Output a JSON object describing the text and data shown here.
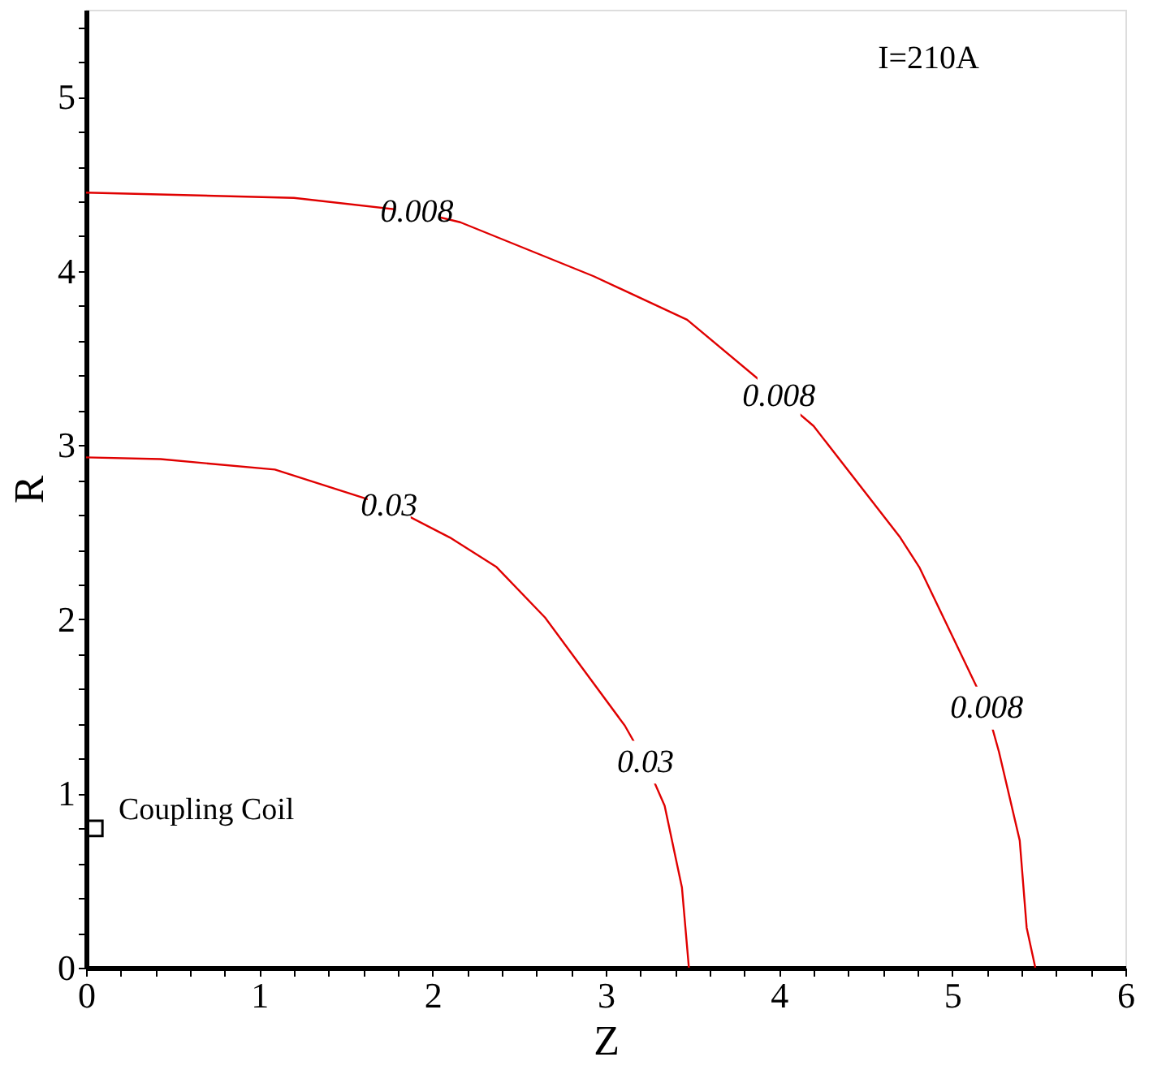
{
  "chart_data": {
    "type": "line",
    "xlabel": "Z",
    "ylabel": "R",
    "xlim": [
      0,
      6
    ],
    "ylim": [
      0,
      5.5
    ],
    "xticks": [
      0,
      {
        "value": 0.2,
        "label": null
      },
      {
        "value": 0.4,
        "label": null
      },
      {
        "value": 0.6,
        "label": null
      },
      {
        "value": 0.8,
        "label": null
      },
      1,
      {
        "value": 1.2,
        "label": null
      },
      {
        "value": 1.4,
        "label": null
      },
      {
        "value": 1.6,
        "label": null
      },
      {
        "value": 1.8,
        "label": null
      },
      2,
      {
        "value": 2.2,
        "label": null
      },
      {
        "value": 2.4,
        "label": null
      },
      {
        "value": 2.6,
        "label": null
      },
      {
        "value": 2.8,
        "label": null
      },
      3,
      {
        "value": 3.2,
        "label": null
      },
      {
        "value": 3.4,
        "label": null
      },
      {
        "value": 3.6,
        "label": null
      },
      {
        "value": 3.8,
        "label": null
      },
      4,
      {
        "value": 4.2,
        "label": null
      },
      {
        "value": 4.4,
        "label": null
      },
      {
        "value": 4.6,
        "label": null
      },
      {
        "value": 4.8,
        "label": null
      },
      5,
      {
        "value": 5.2,
        "label": null
      },
      {
        "value": 5.4,
        "label": null
      },
      {
        "value": 5.6,
        "label": null
      },
      {
        "value": 5.8,
        "label": null
      },
      6
    ],
    "yticks": [
      0,
      {
        "value": 0.2,
        "label": null
      },
      {
        "value": 0.4,
        "label": null
      },
      {
        "value": 0.6,
        "label": null
      },
      {
        "value": 0.8,
        "label": null
      },
      1,
      {
        "value": 1.2,
        "label": null
      },
      {
        "value": 1.4,
        "label": null
      },
      {
        "value": 1.6,
        "label": null
      },
      {
        "value": 1.8,
        "label": null
      },
      2,
      {
        "value": 2.2,
        "label": null
      },
      {
        "value": 2.4,
        "label": null
      },
      {
        "value": 2.6,
        "label": null
      },
      {
        "value": 2.8,
        "label": null
      },
      3,
      {
        "value": 3.2,
        "label": null
      },
      {
        "value": 3.4,
        "label": null
      },
      {
        "value": 3.6,
        "label": null
      },
      {
        "value": 3.8,
        "label": null
      },
      4,
      {
        "value": 4.2,
        "label": null
      },
      {
        "value": 4.4,
        "label": null
      },
      {
        "value": 4.6,
        "label": null
      },
      {
        "value": 4.8,
        "label": null
      },
      5,
      {
        "value": 5.2,
        "label": null
      },
      {
        "value": 5.4,
        "label": null
      }
    ],
    "grid": false,
    "marker": "none",
    "line_style": "solid",
    "series": [
      {
        "color": "#e00000",
        "x": [
          0,
          0.43,
          1.09,
          1.75,
          2.1,
          2.37,
          2.65,
          3.11,
          3.23,
          3.34,
          3.44,
          3.48
        ],
        "values": [
          2.93,
          2.92,
          2.86,
          2.65,
          2.47,
          2.3,
          2.01,
          1.39,
          1.18,
          0.93,
          0.46,
          0
        ]
      },
      {
        "color": "#e00000",
        "x": [
          0,
          1.2,
          1.91,
          2.16,
          2.93,
          3.47,
          4.0,
          4.2,
          4.7,
          4.81,
          5.08,
          5.2,
          5.27,
          5.39,
          5.43,
          5.48
        ],
        "values": [
          4.45,
          4.42,
          4.34,
          4.28,
          3.97,
          3.72,
          3.28,
          3.11,
          2.47,
          2.3,
          1.74,
          1.49,
          1.24,
          0.73,
          0.23,
          0
        ]
      },
      {
        "type": "scatter",
        "marker": "square",
        "color": "#000000",
        "x": [
          0.05
        ],
        "values": [
          0.8
        ]
      }
    ],
    "annotations": [
      "I=210A",
      "Coupling Coil",
      {
        "text": "0.03",
        "x": 1.75,
        "y": 2.65
      },
      {
        "text": "0.03",
        "x": 3.23,
        "y": 1.18
      },
      {
        "text": "0.008",
        "x": 1.91,
        "y": 4.34
      },
      {
        "text": "0.008",
        "x": 4.0,
        "y": 3.28
      },
      {
        "text": "0.008",
        "x": 5.2,
        "y": 1.49
      }
    ]
  }
}
